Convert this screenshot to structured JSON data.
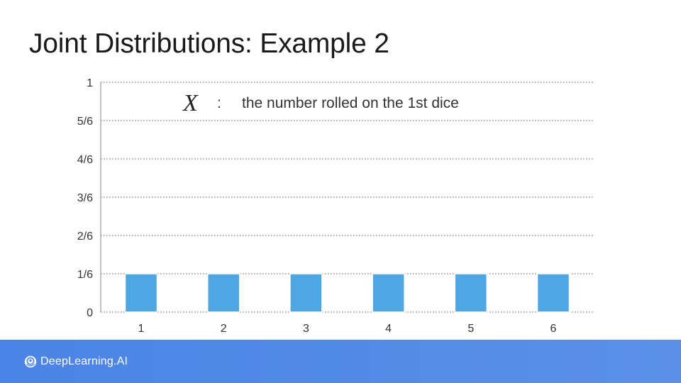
{
  "slide": {
    "title": "Joint Distributions: Example 2"
  },
  "annotation": {
    "variable": "X",
    "separator": ":",
    "description": "the number rolled on the 1st dice"
  },
  "footer": {
    "brand": "DeepLearning.AI"
  },
  "colors": {
    "bar": "#4ea6e3",
    "grid": "#555555",
    "footer_bg": "#5089e7"
  },
  "chart_data": {
    "type": "bar",
    "categories": [
      "1",
      "2",
      "3",
      "4",
      "5",
      "6"
    ],
    "values": [
      0.1667,
      0.1667,
      0.1667,
      0.1667,
      0.1667,
      0.1667
    ],
    "ylim": [
      0,
      1
    ],
    "yticks": [
      0,
      0.1667,
      0.3333,
      0.5,
      0.6667,
      0.8333,
      1
    ],
    "ytick_labels": [
      "0",
      "1/6",
      "2/6",
      "3/6",
      "4/6",
      "5/6",
      "1"
    ],
    "grid": true,
    "grid_style": "dotted",
    "title": "",
    "xlabel": "",
    "ylabel": ""
  }
}
